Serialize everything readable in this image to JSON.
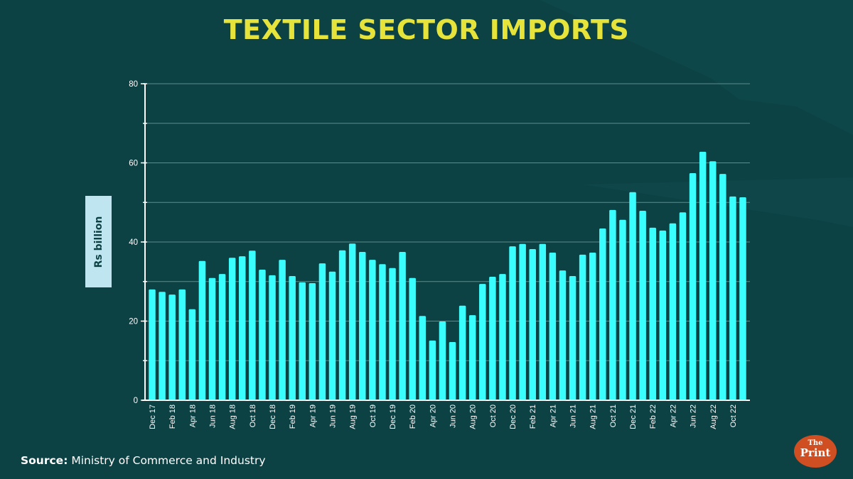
{
  "colors": {
    "background": "#0d4245",
    "bar": "#3afdfd",
    "title": "#e6e43a",
    "axis": "#ffffff",
    "grid": "#5d8c8c",
    "ylabel_box": "#bfe6f0",
    "logo": "#cf4f22"
  },
  "logo": {
    "line1": "The",
    "line2": "Print"
  },
  "source": {
    "label": "Source:",
    "text": "Ministry of Commerce and Industry"
  },
  "chart_data": {
    "type": "bar",
    "title": "TEXTILE SECTOR IMPORTS",
    "xlabel": "",
    "ylabel": "Rs billion",
    "ylim": [
      0,
      80
    ],
    "yticks": [
      0,
      20,
      40,
      60,
      80
    ],
    "minor_grid_step": 10,
    "grid": true,
    "categories": [
      "Dec 17",
      "Jan 18",
      "Feb 18",
      "Mar 18",
      "Apr 18",
      "May 18",
      "Jun 18",
      "Jul 18",
      "Aug 18",
      "Sep 18",
      "Oct 18",
      "Nov 18",
      "Dec 18",
      "Jan 19",
      "Feb 19",
      "Mar 19",
      "Apr 19",
      "May 19",
      "Jun 19",
      "Jul 19",
      "Aug 19",
      "Sep 19",
      "Oct 19",
      "Nov 19",
      "Dec 19",
      "Jan 20",
      "Feb 20",
      "Mar 20",
      "Apr 20",
      "May 20",
      "Jun 20",
      "Jul 20",
      "Aug 20",
      "Sep 20",
      "Oct 20",
      "Nov 20",
      "Dec 20",
      "Jan 21",
      "Feb 21",
      "Mar 21",
      "Apr 21",
      "May 21",
      "Jun 21",
      "Jul 21",
      "Aug 21",
      "Sep 21",
      "Oct 21",
      "Nov 21",
      "Dec 21",
      "Jan 22",
      "Feb 22",
      "Mar 22",
      "Apr 22",
      "May 22",
      "Jun 22",
      "Jul 22",
      "Aug 22",
      "Sep 22",
      "Oct 22",
      "Nov 22"
    ],
    "tick_labels": [
      "Dec 17",
      "",
      "Feb 18",
      "",
      "Apr 18",
      "",
      "Jun 18",
      "",
      "Aug 18",
      "",
      "Oct 18",
      "",
      "Dec 18",
      "",
      "Feb 19",
      "",
      "Apr 19",
      "",
      "Jun 19",
      "",
      "Aug 19",
      "",
      "Oct 19",
      "",
      "Dec 19",
      "",
      "Feb 20",
      "",
      "Apr 20",
      "",
      "Jun 20",
      "",
      "Aug 20",
      "",
      "Oct 20",
      "",
      "Dec 20",
      "",
      "Feb 21",
      "",
      "Apr 21",
      "",
      "Jun 21",
      "",
      "Aug 21",
      "",
      "Oct 21",
      "",
      "Dec 21",
      "",
      "Feb 22",
      "",
      "Apr 22",
      "",
      "Jun 22",
      "",
      "Aug 22",
      "",
      "Oct 22",
      ""
    ],
    "values": [
      28.0,
      27.4,
      26.7,
      28.0,
      23.0,
      35.2,
      30.9,
      31.9,
      36.0,
      36.4,
      37.8,
      33.0,
      31.6,
      35.5,
      31.4,
      29.8,
      29.6,
      34.6,
      32.5,
      37.9,
      39.6,
      37.5,
      35.5,
      34.4,
      33.4,
      37.5,
      30.9,
      21.3,
      15.1,
      19.9,
      14.7,
      23.9,
      21.5,
      29.4,
      31.2,
      31.9,
      38.9,
      39.5,
      38.2,
      39.5,
      37.3,
      32.8,
      31.4,
      36.8,
      37.3,
      43.4,
      48.1,
      45.6,
      52.6,
      47.9,
      43.6,
      42.9,
      44.7,
      47.5,
      57.4,
      62.8,
      60.4,
      57.2,
      51.5,
      51.3
    ]
  }
}
